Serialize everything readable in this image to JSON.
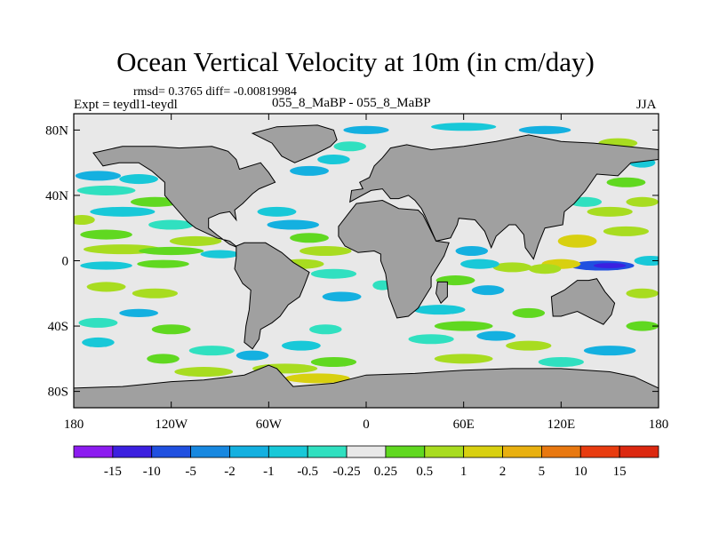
{
  "chart_data": {
    "type": "heatmap",
    "title": "Ocean Vertical Velocity at 10m (in cm/day)",
    "stats_label": "rmsd= 0.3765 diff= -0.00819984",
    "experiment_label": "Expt = teydl1-teydl",
    "cases_label": "055_8_MaBP - 055_8_MaBP",
    "season": "JJA",
    "x_ticks": [
      "180",
      "120W",
      "60W",
      "0",
      "60E",
      "120E",
      "180"
    ],
    "x_tick_values": [
      -180,
      -120,
      -60,
      0,
      60,
      120,
      180
    ],
    "y_ticks": [
      "80N",
      "40N",
      "0",
      "40S",
      "80S"
    ],
    "y_tick_values": [
      80,
      40,
      0,
      -40,
      -80
    ],
    "xlim": [
      -180,
      180
    ],
    "ylim": [
      -90,
      90
    ],
    "colorbar_levels": [
      "-15",
      "-10",
      "-5",
      "-2",
      "-1",
      "-0.5",
      "-0.25",
      "0.25",
      "0.5",
      "1",
      "2",
      "5",
      "10",
      "15"
    ],
    "colorbar_colors": [
      "#8c1cf0",
      "#3c20e0",
      "#2050e0",
      "#1888e0",
      "#14b0e0",
      "#18c8d8",
      "#30e0c0",
      "#e8e8e8",
      "#60d820",
      "#a8dc20",
      "#d8d010",
      "#e8b010",
      "#e87810",
      "#e83c10",
      "#dc2810"
    ],
    "land_color": "#a0a0a0",
    "background_color": "#e8e8e8"
  }
}
